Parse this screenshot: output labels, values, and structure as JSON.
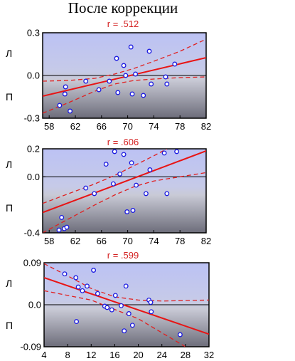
{
  "figure": {
    "title": "После коррекции"
  },
  "chart_data": [
    {
      "type": "scatter",
      "annotation": "r = .512",
      "upper_side_label": "Л",
      "lower_side_label": "П",
      "xlim": [
        57,
        82
      ],
      "ylim": [
        -0.3,
        0.3
      ],
      "xticks": [
        58,
        62,
        66,
        70,
        74,
        78,
        82
      ],
      "yticks": [
        0.3,
        0.0,
        -0.3
      ],
      "xtick_labels": [
        "58",
        "62",
        "66",
        "70",
        "74",
        "78",
        "82"
      ],
      "ytick_labels": [
        "0.3",
        "0.0",
        "-0.3"
      ],
      "regression": {
        "y_at_xmin": -0.145,
        "y_at_xmax": 0.125
      },
      "ci_upper": {
        "x": [
          57,
          61,
          65,
          68,
          71,
          74,
          78,
          82
        ],
        "y": [
          -0.04,
          -0.035,
          -0.02,
          0.01,
          0.05,
          0.1,
          0.17,
          0.255
        ]
      },
      "ci_lower": {
        "x": [
          57,
          61,
          65,
          68,
          71,
          74,
          78,
          82
        ],
        "y": [
          -0.265,
          -0.19,
          -0.11,
          -0.06,
          -0.035,
          -0.025,
          -0.015,
          -0.01
        ]
      },
      "points": [
        {
          "x": 59.6,
          "y": -0.21
        },
        {
          "x": 60.4,
          "y": -0.13
        },
        {
          "x": 60.5,
          "y": -0.08
        },
        {
          "x": 61.2,
          "y": -0.25
        },
        {
          "x": 63.6,
          "y": -0.04
        },
        {
          "x": 65.6,
          "y": -0.1
        },
        {
          "x": 67.2,
          "y": -0.04
        },
        {
          "x": 68.3,
          "y": 0.12
        },
        {
          "x": 68.5,
          "y": -0.12
        },
        {
          "x": 69.4,
          "y": 0.07
        },
        {
          "x": 69.7,
          "y": 0.0
        },
        {
          "x": 70.5,
          "y": 0.2
        },
        {
          "x": 70.7,
          "y": -0.13
        },
        {
          "x": 71.2,
          "y": 0.01
        },
        {
          "x": 72.4,
          "y": -0.14
        },
        {
          "x": 73.3,
          "y": 0.17
        },
        {
          "x": 73.6,
          "y": -0.06
        },
        {
          "x": 75.8,
          "y": -0.01
        },
        {
          "x": 76.0,
          "y": -0.06
        },
        {
          "x": 77.2,
          "y": 0.08
        }
      ]
    },
    {
      "type": "scatter",
      "annotation": "r = .606",
      "upper_side_label": "Л",
      "lower_side_label": "П",
      "xlim": [
        57,
        82
      ],
      "ylim": [
        -0.4,
        0.2
      ],
      "xticks": [
        58,
        62,
        66,
        70,
        74,
        78,
        82
      ],
      "yticks": [
        0.2,
        0.0,
        -0.4
      ],
      "xtick_labels": [
        "58",
        "62",
        "66",
        "70",
        "74",
        "78",
        "82"
      ],
      "ytick_labels": [
        "0.2",
        "0.0",
        "-0.4"
      ],
      "regression": {
        "y_at_xmin": -0.255,
        "y_at_xmax": 0.185
      },
      "ci_upper": {
        "x": [
          57,
          61,
          65,
          68,
          71,
          74,
          76
        ],
        "y": [
          -0.19,
          -0.12,
          -0.05,
          0.01,
          0.08,
          0.15,
          0.2
        ]
      },
      "ci_lower": {
        "x": [
          57,
          61,
          65,
          68,
          71,
          74,
          78,
          82
        ],
        "y": [
          -0.4,
          -0.3,
          -0.2,
          -0.13,
          -0.07,
          -0.03,
          0.0,
          0.03
        ]
      },
      "points": [
        {
          "x": 59.5,
          "y": -0.38
        },
        {
          "x": 60.3,
          "y": -0.37
        },
        {
          "x": 60.7,
          "y": -0.36
        },
        {
          "x": 59.9,
          "y": -0.29
        },
        {
          "x": 63.6,
          "y": -0.08
        },
        {
          "x": 64.9,
          "y": -0.12
        },
        {
          "x": 66.7,
          "y": 0.09
        },
        {
          "x": 67.8,
          "y": -0.05
        },
        {
          "x": 68.0,
          "y": 0.18
        },
        {
          "x": 68.8,
          "y": 0.02
        },
        {
          "x": 69.4,
          "y": 0.16
        },
        {
          "x": 69.9,
          "y": -0.25
        },
        {
          "x": 70.6,
          "y": 0.1
        },
        {
          "x": 70.8,
          "y": -0.24
        },
        {
          "x": 71.3,
          "y": -0.06
        },
        {
          "x": 72.8,
          "y": -0.12
        },
        {
          "x": 73.4,
          "y": 0.05
        },
        {
          "x": 75.6,
          "y": 0.17
        },
        {
          "x": 76.0,
          "y": -0.12
        },
        {
          "x": 77.5,
          "y": 0.18
        }
      ]
    },
    {
      "type": "scatter",
      "annotation": "r = .599",
      "upper_side_label": "Л",
      "lower_side_label": "П",
      "xlim": [
        4,
        32
      ],
      "ylim": [
        -0.09,
        0.09
      ],
      "xticks": [
        4,
        8,
        12,
        16,
        20,
        24,
        28,
        32
      ],
      "yticks": [
        0.09,
        0.0,
        -0.09
      ],
      "xtick_labels": [
        "4",
        "8",
        "12",
        "16",
        "20",
        "24",
        "28",
        "32"
      ],
      "ytick_labels": [
        "0.09",
        "0.0",
        "-0.09"
      ],
      "regression": {
        "y_at_xmin": 0.058,
        "y_at_xmax": -0.063
      },
      "ci_upper": {
        "x": [
          4,
          8,
          12,
          16,
          20,
          24,
          28,
          32
        ],
        "y": [
          0.088,
          0.062,
          0.035,
          0.017,
          0.01,
          0.008,
          0.009,
          0.01
        ]
      },
      "ci_lower": {
        "x": [
          4,
          8,
          12,
          16,
          20,
          24,
          28,
          32
        ],
        "y": [
          0.03,
          0.02,
          0.01,
          -0.01,
          -0.03,
          -0.06,
          -0.09,
          -0.12
        ]
      },
      "points": [
        {
          "x": 7.5,
          "y": 0.066
        },
        {
          "x": 9.4,
          "y": 0.058
        },
        {
          "x": 9.5,
          "y": -0.036
        },
        {
          "x": 9.8,
          "y": 0.038
        },
        {
          "x": 10.5,
          "y": 0.03
        },
        {
          "x": 11.3,
          "y": 0.04
        },
        {
          "x": 12.4,
          "y": 0.074
        },
        {
          "x": 13.1,
          "y": 0.024
        },
        {
          "x": 14.3,
          "y": -0.003
        },
        {
          "x": 14.7,
          "y": -0.006
        },
        {
          "x": 15.5,
          "y": -0.011
        },
        {
          "x": 16.1,
          "y": 0.02
        },
        {
          "x": 17.1,
          "y": -0.002
        },
        {
          "x": 17.6,
          "y": -0.056
        },
        {
          "x": 17.9,
          "y": 0.04
        },
        {
          "x": 18.4,
          "y": -0.019
        },
        {
          "x": 19.0,
          "y": -0.044
        },
        {
          "x": 21.8,
          "y": 0.01
        },
        {
          "x": 22.1,
          "y": 0.005
        },
        {
          "x": 22.2,
          "y": -0.015
        },
        {
          "x": 27.1,
          "y": -0.064
        }
      ]
    }
  ]
}
